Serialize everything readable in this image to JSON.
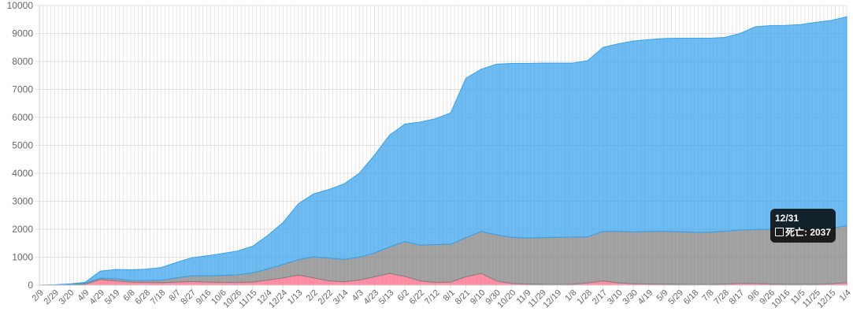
{
  "chart_data": {
    "type": "area",
    "stacked": true,
    "grid": true,
    "legend": "none",
    "ylim": [
      0,
      10000
    ],
    "yticks": [
      "0",
      "1000",
      "2000",
      "3000",
      "4000",
      "5000",
      "6000",
      "7000",
      "8000",
      "9000",
      "10000"
    ],
    "x_labels": [
      "2/9",
      "2/29",
      "3/20",
      "4/9",
      "4/29",
      "5/19",
      "6/8",
      "6/28",
      "7/18",
      "8/7",
      "8/27",
      "9/16",
      "10/6",
      "10/26",
      "11/15",
      "12/4",
      "12/24",
      "1/13",
      "2/2",
      "2/22",
      "3/14",
      "4/3",
      "4/23",
      "5/13",
      "6/2",
      "6/22",
      "7/12",
      "8/1",
      "8/21",
      "9/10",
      "9/30",
      "10/20",
      "11/9",
      "11/29",
      "12/19",
      "1/8",
      "1/28",
      "2/17",
      "3/10",
      "3/30",
      "4/19",
      "5/9",
      "5/29",
      "6/18",
      "7/8",
      "7/28",
      "8/17",
      "9/6",
      "9/26",
      "10/16",
      "11/5",
      "11/25",
      "12/15",
      "1/4"
    ],
    "series": [
      {
        "color": "#ff6384",
        "values": [
          0,
          5,
          15,
          30,
          200,
          150,
          110,
          100,
          90,
          110,
          130,
          110,
          100,
          100,
          110,
          180,
          260,
          360,
          260,
          150,
          120,
          180,
          300,
          420,
          310,
          150,
          100,
          110,
          300,
          420,
          150,
          60,
          40,
          30,
          20,
          30,
          80,
          150,
          80,
          50,
          40,
          40,
          30,
          20,
          20,
          40,
          60,
          60,
          40,
          30,
          30,
          30,
          50,
          90
        ]
      },
      {
        "color": "#808080",
        "values": [
          0,
          5,
          20,
          40,
          50,
          80,
          60,
          70,
          90,
          150,
          200,
          220,
          250,
          270,
          330,
          400,
          480,
          550,
          750,
          820,
          800,
          820,
          850,
          950,
          1250,
          1280,
          1350,
          1350,
          1400,
          1500,
          1650,
          1650,
          1650,
          1670,
          1690,
          1690,
          1650,
          1770,
          1850,
          1850,
          1880,
          1890,
          1880,
          1870,
          1870,
          1890,
          1910,
          1930,
          1960,
          1980,
          1990,
          1990,
          1990,
          2037
        ]
      },
      {
        "color": "#36a2eb",
        "values": [
          0,
          5,
          10,
          30,
          250,
          330,
          380,
          400,
          450,
          550,
          650,
          720,
          780,
          850,
          950,
          1200,
          1500,
          2000,
          2250,
          2450,
          2700,
          3000,
          3500,
          4000,
          4200,
          4400,
          4500,
          4700,
          5700,
          5800,
          6100,
          6220,
          6240,
          6240,
          6230,
          6220,
          6300,
          6580,
          6700,
          6830,
          6860,
          6890,
          6920,
          6940,
          6940,
          6930,
          7030,
          7250,
          7280,
          7280,
          7300,
          7380,
          7430,
          7470
        ]
      }
    ]
  },
  "tooltip": {
    "title": "12/31",
    "label": "死亡: 2037"
  }
}
